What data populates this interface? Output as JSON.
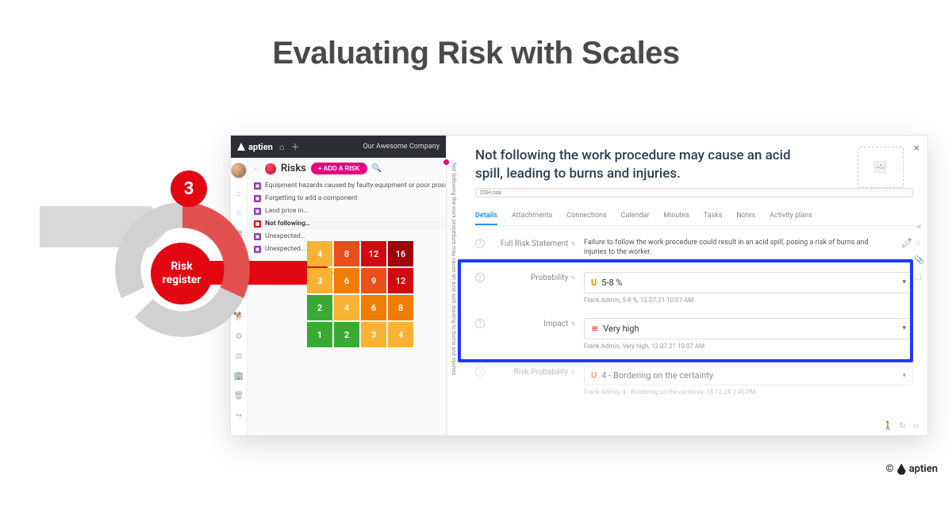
{
  "slide": {
    "title": "Evaluating Risk with Scales"
  },
  "badge": {
    "number": "3",
    "center": "Risk register"
  },
  "topbar": {
    "brand": "aptien",
    "company": "Our Awesome Company"
  },
  "risks": {
    "title": "Risks",
    "add_label": "+ ADD A RISK",
    "items": [
      "Equipment hazards caused by faulty equipment or poor process",
      "Forgetting to add a component",
      "Land price in…",
      "Not following…",
      "Unexpected…",
      "Unexpected…"
    ]
  },
  "vtext": "Not following the work procedure may cause an acid spill, leading to burns and injuries.",
  "heatmap": {
    "cells": [
      {
        "v": "4",
        "c": "#f9b233"
      },
      {
        "v": "8",
        "c": "#e94e1b"
      },
      {
        "v": "12",
        "c": "#d20a11"
      },
      {
        "v": "16",
        "c": "#a00008"
      },
      {
        "v": "3",
        "c": "#f9b233"
      },
      {
        "v": "6",
        "c": "#ef7d00"
      },
      {
        "v": "9",
        "c": "#e94e1b"
      },
      {
        "v": "12",
        "c": "#d20a11"
      },
      {
        "v": "2",
        "c": "#3aaa35"
      },
      {
        "v": "4",
        "c": "#f9b233"
      },
      {
        "v": "6",
        "c": "#ef7d00"
      },
      {
        "v": "8",
        "c": "#ef7d00"
      },
      {
        "v": "1",
        "c": "#3aaa35"
      },
      {
        "v": "2",
        "c": "#3aaa35"
      },
      {
        "v": "3",
        "c": "#f9b233"
      },
      {
        "v": "4",
        "c": "#f9b233"
      }
    ]
  },
  "detail": {
    "title": "Not following the work procedure may cause an acid spill, leading to burns and injuries.",
    "tag": "OSH risk",
    "tabs": [
      "Details",
      "Attachments",
      "Connections",
      "Calendar",
      "Minutes",
      "Tasks",
      "Notes",
      "Activity plans"
    ],
    "statement_label": "Full Risk Statement",
    "statement": "Failure to follow the work procedure could result in an acid spill, posing a risk of burns and injuries to the worker.",
    "probability_label": "Probability",
    "probability_value": "5-8 %",
    "probability_sub": "Frank Admin, 5-8 %, 12.07.21 10:07 AM",
    "impact_label": "Impact",
    "impact_value": "Very high",
    "impact_sub": "Frank Admin, Very high, 12.07.21 10:07 AM",
    "riskprob_label": "Risk Probability",
    "riskprob_value": "4 - Bordering on the certainty",
    "riskprob_sub": "Frank Admin, 4 - Bordering on the certainty, 13.12.24 2:40 PM"
  },
  "footer": {
    "brand": "aptien",
    "copy": "©"
  }
}
